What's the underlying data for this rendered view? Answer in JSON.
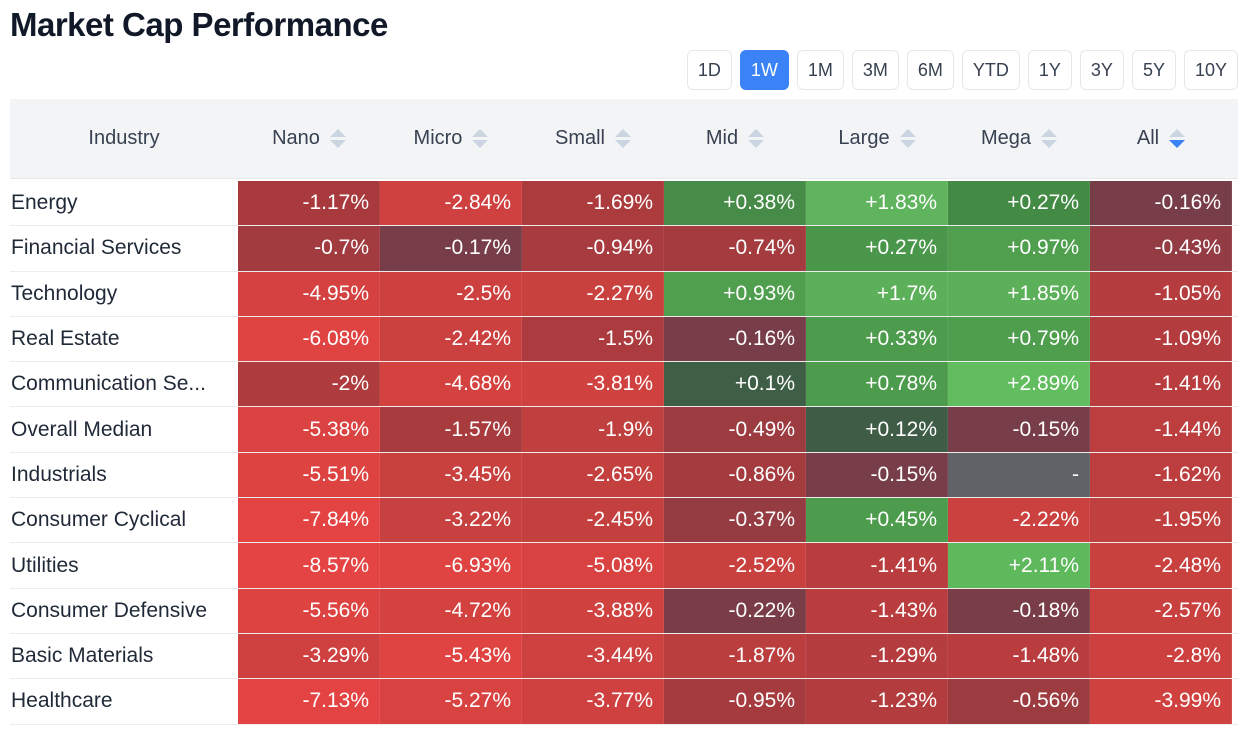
{
  "title": "Market Cap Performance",
  "ranges": [
    "1D",
    "1W",
    "1M",
    "3M",
    "6M",
    "YTD",
    "1Y",
    "3Y",
    "5Y",
    "10Y"
  ],
  "active_range": "1W",
  "columns": {
    "industry": "Industry",
    "nano": "Nano",
    "micro": "Micro",
    "small": "Small",
    "mid": "Mid",
    "large": "Large",
    "mega": "Mega",
    "all": "All"
  },
  "sorted_column": "all",
  "sort_direction": "desc",
  "colors": {
    "active_button": "#3b82f6",
    "neutral_cell": "#5f6368"
  },
  "rows": [
    {
      "name": "Energy",
      "cells": [
        {
          "v": "-1.17%",
          "c": "#a83a3d"
        },
        {
          "v": "-2.84%",
          "c": "#cf4140"
        },
        {
          "v": "-1.69%",
          "c": "#ac3b3e"
        },
        {
          "v": "+0.38%",
          "c": "#468c48"
        },
        {
          "v": "+1.83%",
          "c": "#5fb45d"
        },
        {
          "v": "+0.27%",
          "c": "#438a45"
        },
        {
          "v": "-0.16%",
          "c": "#773d48"
        }
      ]
    },
    {
      "name": "Financial Services",
      "cells": [
        {
          "v": "-0.7%",
          "c": "#a13b40"
        },
        {
          "v": "-0.17%",
          "c": "#773d48"
        },
        {
          "v": "-0.94%",
          "c": "#a83b3f"
        },
        {
          "v": "-0.74%",
          "c": "#a43b3f"
        },
        {
          "v": "+0.27%",
          "c": "#4a964a"
        },
        {
          "v": "+0.97%",
          "c": "#4f9f4e"
        },
        {
          "v": "-0.43%",
          "c": "#943c43"
        }
      ]
    },
    {
      "name": "Technology",
      "cells": [
        {
          "v": "-4.95%",
          "c": "#d54140"
        },
        {
          "v": "-2.5%",
          "c": "#cc4140"
        },
        {
          "v": "-2.27%",
          "c": "#c9413f"
        },
        {
          "v": "+0.93%",
          "c": "#4f9f4e"
        },
        {
          "v": "+1.7%",
          "c": "#5cb05a"
        },
        {
          "v": "+1.85%",
          "c": "#5bb059"
        },
        {
          "v": "-1.05%",
          "c": "#b63d3f"
        }
      ]
    },
    {
      "name": "Real Estate",
      "cells": [
        {
          "v": "-6.08%",
          "c": "#e04442"
        },
        {
          "v": "-2.42%",
          "c": "#cb413f"
        },
        {
          "v": "-1.5%",
          "c": "#ab3b3e"
        },
        {
          "v": "-0.16%",
          "c": "#773d48"
        },
        {
          "v": "+0.33%",
          "c": "#4d9c4d"
        },
        {
          "v": "+0.79%",
          "c": "#4e9e4e"
        },
        {
          "v": "-1.09%",
          "c": "#b33c3f"
        }
      ]
    },
    {
      "name": "Communication Se...",
      "cells": [
        {
          "v": "-2%",
          "c": "#ae3c3e"
        },
        {
          "v": "-4.68%",
          "c": "#d3423f"
        },
        {
          "v": "-3.81%",
          "c": "#d0423f"
        },
        {
          "v": "+0.1%",
          "c": "#3e5f46"
        },
        {
          "v": "+0.78%",
          "c": "#4d9c4d"
        },
        {
          "v": "+2.89%",
          "c": "#62bd5f"
        },
        {
          "v": "-1.41%",
          "c": "#b93d3f"
        }
      ]
    },
    {
      "name": "Overall Median",
      "cells": [
        {
          "v": "-5.38%",
          "c": "#da4341"
        },
        {
          "v": "-1.57%",
          "c": "#a83b3e"
        },
        {
          "v": "-1.9%",
          "c": "#c03f3f"
        },
        {
          "v": "-0.49%",
          "c": "#9c3c41"
        },
        {
          "v": "+0.12%",
          "c": "#3f5c46"
        },
        {
          "v": "-0.15%",
          "c": "#773d48"
        },
        {
          "v": "-1.44%",
          "c": "#bc3e3f"
        }
      ]
    },
    {
      "name": "Industrials",
      "cells": [
        {
          "v": "-5.51%",
          "c": "#dc4341"
        },
        {
          "v": "-3.45%",
          "c": "#c8413f"
        },
        {
          "v": "-2.65%",
          "c": "#c4403f"
        },
        {
          "v": "-0.86%",
          "c": "#a43b3f"
        },
        {
          "v": "-0.15%",
          "c": "#773d48"
        },
        {
          "v": "-",
          "c": "#5f6368"
        },
        {
          "v": "-1.62%",
          "c": "#bd3e3f"
        }
      ]
    },
    {
      "name": "Consumer Cyclical",
      "cells": [
        {
          "v": "-7.84%",
          "c": "#e34443"
        },
        {
          "v": "-3.22%",
          "c": "#c6413f"
        },
        {
          "v": "-2.45%",
          "c": "#c4403f"
        },
        {
          "v": "-0.37%",
          "c": "#953c42"
        },
        {
          "v": "+0.45%",
          "c": "#4d9c4d"
        },
        {
          "v": "-2.22%",
          "c": "#cb413f"
        },
        {
          "v": "-1.95%",
          "c": "#c03f3f"
        }
      ]
    },
    {
      "name": "Utilities",
      "cells": [
        {
          "v": "-8.57%",
          "c": "#e44443"
        },
        {
          "v": "-6.93%",
          "c": "#e04442"
        },
        {
          "v": "-5.08%",
          "c": "#d84241"
        },
        {
          "v": "-2.52%",
          "c": "#c9413f"
        },
        {
          "v": "-1.41%",
          "c": "#b93d3f"
        },
        {
          "v": "+2.11%",
          "c": "#5db95b"
        },
        {
          "v": "-2.48%",
          "c": "#c8413f"
        }
      ]
    },
    {
      "name": "Consumer Defensive",
      "cells": [
        {
          "v": "-5.56%",
          "c": "#dc4341"
        },
        {
          "v": "-4.72%",
          "c": "#d3423f"
        },
        {
          "v": "-3.88%",
          "c": "#d0423f"
        },
        {
          "v": "-0.22%",
          "c": "#7a3d47"
        },
        {
          "v": "-1.43%",
          "c": "#b93d3f"
        },
        {
          "v": "-0.18%",
          "c": "#783d47"
        },
        {
          "v": "-2.57%",
          "c": "#c9413f"
        }
      ]
    },
    {
      "name": "Basic Materials",
      "cells": [
        {
          "v": "-3.29%",
          "c": "#cf4140"
        },
        {
          "v": "-5.43%",
          "c": "#e04442"
        },
        {
          "v": "-3.44%",
          "c": "#cd4140"
        },
        {
          "v": "-1.87%",
          "c": "#bb3e3f"
        },
        {
          "v": "-1.29%",
          "c": "#b63d3f"
        },
        {
          "v": "-1.48%",
          "c": "#b93d3f"
        },
        {
          "v": "-2.8%",
          "c": "#cc4140"
        }
      ]
    },
    {
      "name": "Healthcare",
      "cells": [
        {
          "v": "-7.13%",
          "c": "#e34443"
        },
        {
          "v": "-5.27%",
          "c": "#d84241"
        },
        {
          "v": "-3.77%",
          "c": "#cf4140"
        },
        {
          "v": "-0.95%",
          "c": "#a53b3f"
        },
        {
          "v": "-1.23%",
          "c": "#b33c3f"
        },
        {
          "v": "-0.56%",
          "c": "#9c3c41"
        },
        {
          "v": "-3.99%",
          "c": "#d0423f"
        }
      ]
    }
  ]
}
